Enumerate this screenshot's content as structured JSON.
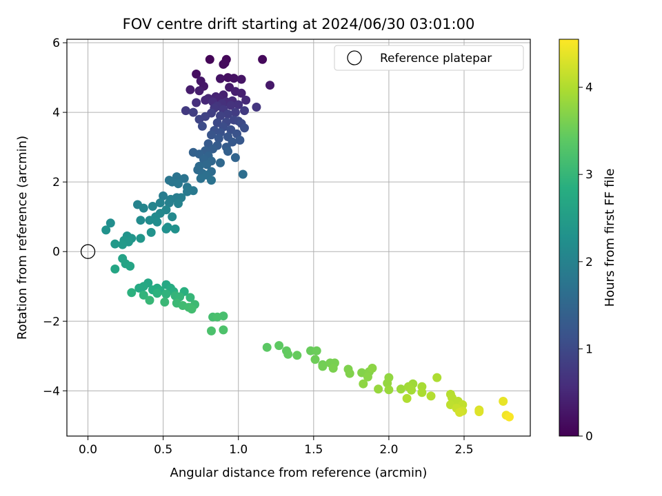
{
  "chart_data": {
    "type": "scatter",
    "title": "FOV centre drift starting at 2024/06/30 03:01:00",
    "xlabel": "Angular distance from reference (arcmin)",
    "ylabel": "Rotation from reference (arcmin)",
    "xlim": [
      -0.14,
      2.94
    ],
    "ylim": [
      -5.3,
      6.1
    ],
    "xticks": [
      0.0,
      0.5,
      1.0,
      1.5,
      2.0,
      2.5
    ],
    "xtick_labels": [
      "0.0",
      "0.5",
      "1.0",
      "1.5",
      "2.0",
      "2.5"
    ],
    "yticks": [
      -4,
      -2,
      0,
      2,
      4,
      6
    ],
    "ytick_labels": [
      "−4",
      "−2",
      "0",
      "2",
      "4",
      "6"
    ],
    "grid": true,
    "legend": {
      "label": "Reference platepar",
      "placement": "top-right"
    },
    "colorbar": {
      "label": "Hours from first FF file",
      "range": [
        0,
        4.55
      ],
      "ticks": [
        0,
        1,
        2,
        3,
        4
      ],
      "tick_labels": [
        "0",
        "1",
        "2",
        "3",
        "4"
      ],
      "colormap": "viridis"
    },
    "reference_point": {
      "x": 0.0,
      "y": 0.0
    },
    "series": [
      {
        "points": [
          [
            0.81,
            5.52,
            0.05
          ],
          [
            0.92,
            5.52,
            0.08
          ],
          [
            1.16,
            5.52,
            0.1
          ],
          [
            0.91,
            5.42,
            0.12
          ],
          [
            0.9,
            5.38,
            0.14
          ],
          [
            0.72,
            5.1,
            0.16
          ],
          [
            0.93,
            5.0,
            0.2
          ],
          [
            0.97,
            4.98,
            0.22
          ],
          [
            0.88,
            4.97,
            0.24
          ],
          [
            1.02,
            4.95,
            0.26
          ],
          [
            0.75,
            4.9,
            0.28
          ],
          [
            0.77,
            4.75,
            0.3
          ],
          [
            1.21,
            4.78,
            0.32
          ],
          [
            0.94,
            4.72,
            0.34
          ],
          [
            0.68,
            4.65,
            0.36
          ],
          [
            0.74,
            4.62,
            0.38
          ],
          [
            0.98,
            4.6,
            0.4
          ],
          [
            1.02,
            4.55,
            0.42
          ],
          [
            0.9,
            4.5,
            0.44
          ],
          [
            0.85,
            4.45,
            0.46
          ],
          [
            0.87,
            4.4,
            0.48
          ],
          [
            0.8,
            4.4,
            0.5
          ],
          [
            0.78,
            4.35,
            0.52
          ],
          [
            1.05,
            4.35,
            0.54
          ],
          [
            0.96,
            4.33,
            0.56
          ],
          [
            0.92,
            4.3,
            0.58
          ],
          [
            0.83,
            4.3,
            0.6
          ],
          [
            0.72,
            4.28,
            0.62
          ],
          [
            0.89,
            4.25,
            0.64
          ],
          [
            1.0,
            4.22,
            0.66
          ],
          [
            0.95,
            4.2,
            0.68
          ],
          [
            0.86,
            4.18,
            0.7
          ],
          [
            1.12,
            4.15,
            0.72
          ],
          [
            0.84,
            4.12,
            0.74
          ],
          [
            0.9,
            4.08,
            0.76
          ],
          [
            0.65,
            4.05,
            0.78
          ],
          [
            1.04,
            4.05,
            0.8
          ],
          [
            0.98,
            4.0,
            0.82
          ],
          [
            0.7,
            4.0,
            0.84
          ],
          [
            0.82,
            3.98,
            0.86
          ],
          [
            0.93,
            3.95,
            0.88
          ],
          [
            0.88,
            3.9,
            0.9
          ],
          [
            0.78,
            3.88,
            0.92
          ],
          [
            0.74,
            3.8,
            0.94
          ],
          [
            0.97,
            3.78,
            0.96
          ],
          [
            1.0,
            3.75,
            0.98
          ],
          [
            0.92,
            3.72,
            1.0
          ],
          [
            0.86,
            3.7,
            1.02
          ],
          [
            1.02,
            3.68,
            1.04
          ],
          [
            0.76,
            3.6,
            1.06
          ],
          [
            0.9,
            3.58,
            1.08
          ],
          [
            1.04,
            3.55,
            1.1
          ],
          [
            0.95,
            3.5,
            1.12
          ],
          [
            0.84,
            3.48,
            1.14
          ],
          [
            0.88,
            3.42,
            1.16
          ],
          [
            0.99,
            3.38,
            1.18
          ],
          [
            0.82,
            3.35,
            1.2
          ],
          [
            0.93,
            3.3,
            1.22
          ],
          [
            0.87,
            3.25,
            1.24
          ],
          [
            1.01,
            3.2,
            1.26
          ],
          [
            0.96,
            3.15,
            1.28
          ],
          [
            0.8,
            3.1,
            1.3
          ],
          [
            0.86,
            3.05,
            1.32
          ],
          [
            0.92,
            3.0,
            1.34
          ],
          [
            0.83,
            2.95,
            1.36
          ],
          [
            0.78,
            2.9,
            1.38
          ],
          [
            0.93,
            2.88,
            1.4
          ],
          [
            0.7,
            2.85,
            1.42
          ],
          [
            0.74,
            2.8,
            1.44
          ],
          [
            0.8,
            2.75,
            1.46
          ],
          [
            0.98,
            2.7,
            1.48
          ],
          [
            0.77,
            2.65,
            1.5
          ],
          [
            0.82,
            2.6,
            1.52
          ],
          [
            0.88,
            2.55,
            1.54
          ],
          [
            0.79,
            2.5,
            1.56
          ],
          [
            0.74,
            2.45,
            1.58
          ],
          [
            0.73,
            2.35,
            1.6
          ],
          [
            0.82,
            2.3,
            1.62
          ],
          [
            0.76,
            2.25,
            1.64
          ],
          [
            1.03,
            2.22,
            1.66
          ],
          [
            0.79,
            2.2,
            1.68
          ],
          [
            0.75,
            2.1,
            1.7
          ],
          [
            0.82,
            2.05,
            1.72
          ],
          [
            0.59,
            2.15,
            1.74
          ],
          [
            0.64,
            2.1,
            1.76
          ],
          [
            0.54,
            2.05,
            1.78
          ],
          [
            0.56,
            2.0,
            1.8
          ],
          [
            0.6,
            1.95,
            1.82
          ],
          [
            0.66,
            1.85,
            1.84
          ],
          [
            0.7,
            1.75,
            1.86
          ],
          [
            0.66,
            1.72,
            1.88
          ],
          [
            0.5,
            1.6,
            1.9
          ],
          [
            0.59,
            1.55,
            1.92
          ],
          [
            0.62,
            1.55,
            1.94
          ],
          [
            0.55,
            1.5,
            1.96
          ],
          [
            0.54,
            1.4,
            1.98
          ],
          [
            0.48,
            1.4,
            2.0
          ],
          [
            0.6,
            1.38,
            2.02
          ],
          [
            0.33,
            1.35,
            2.04
          ],
          [
            0.43,
            1.3,
            2.06
          ],
          [
            0.37,
            1.25,
            2.08
          ],
          [
            0.52,
            1.2,
            2.1
          ],
          [
            0.48,
            1.1,
            2.12
          ],
          [
            0.56,
            1.0,
            2.14
          ],
          [
            0.45,
            1.0,
            2.16
          ],
          [
            0.35,
            0.9,
            2.18
          ],
          [
            0.41,
            0.9,
            2.2
          ],
          [
            0.46,
            0.85,
            2.22
          ],
          [
            0.15,
            0.82,
            2.24
          ],
          [
            0.53,
            0.7,
            2.26
          ],
          [
            0.52,
            0.65,
            2.28
          ],
          [
            0.58,
            0.65,
            2.3
          ],
          [
            0.12,
            0.62,
            2.32
          ],
          [
            0.42,
            0.55,
            2.34
          ],
          [
            0.26,
            0.45,
            2.36
          ],
          [
            0.29,
            0.38,
            2.38
          ],
          [
            0.35,
            0.38,
            2.4
          ],
          [
            0.24,
            0.32,
            2.42
          ],
          [
            0.27,
            0.28,
            2.44
          ],
          [
            0.18,
            0.22,
            2.46
          ],
          [
            0.23,
            0.2,
            2.48
          ],
          [
            0.23,
            -0.2,
            2.62
          ],
          [
            0.25,
            -0.35,
            2.64
          ],
          [
            0.28,
            -0.42,
            2.66
          ],
          [
            0.18,
            -0.5,
            2.68
          ],
          [
            0.4,
            -0.9,
            2.7
          ],
          [
            0.52,
            -0.95,
            2.72
          ],
          [
            0.37,
            -1.0,
            2.74
          ],
          [
            0.34,
            -1.05,
            2.76
          ],
          [
            0.46,
            -1.05,
            2.78
          ],
          [
            0.55,
            -1.05,
            2.8
          ],
          [
            0.43,
            -1.1,
            2.82
          ],
          [
            0.48,
            -1.12,
            2.84
          ],
          [
            0.57,
            -1.15,
            2.86
          ],
          [
            0.64,
            -1.15,
            2.88
          ],
          [
            0.29,
            -1.18,
            2.9
          ],
          [
            0.46,
            -1.2,
            2.92
          ],
          [
            0.52,
            -1.22,
            2.94
          ],
          [
            0.37,
            -1.25,
            2.96
          ],
          [
            0.58,
            -1.27,
            2.98
          ],
          [
            0.61,
            -1.3,
            3.0
          ],
          [
            0.68,
            -1.32,
            3.02
          ],
          [
            0.41,
            -1.4,
            3.04
          ],
          [
            0.51,
            -1.45,
            3.06
          ],
          [
            0.59,
            -1.48,
            3.08
          ],
          [
            0.71,
            -1.52,
            3.1
          ],
          [
            0.63,
            -1.55,
            3.12
          ],
          [
            0.67,
            -1.6,
            3.14
          ],
          [
            0.69,
            -1.65,
            3.16
          ],
          [
            0.83,
            -1.88,
            3.18
          ],
          [
            0.9,
            -1.85,
            3.2
          ],
          [
            0.86,
            -1.88,
            3.22
          ],
          [
            0.82,
            -2.28,
            3.24
          ],
          [
            0.9,
            -2.25,
            3.26
          ],
          [
            1.19,
            -2.75,
            3.4
          ],
          [
            1.27,
            -2.7,
            3.42
          ],
          [
            1.32,
            -2.85,
            3.44
          ],
          [
            1.33,
            -2.95,
            3.46
          ],
          [
            1.39,
            -2.98,
            3.48
          ],
          [
            1.48,
            -2.85,
            3.5
          ],
          [
            1.52,
            -2.85,
            3.52
          ],
          [
            1.51,
            -3.1,
            3.54
          ],
          [
            1.56,
            -3.25,
            3.56
          ],
          [
            1.56,
            -3.3,
            3.58
          ],
          [
            1.61,
            -3.2,
            3.6
          ],
          [
            1.64,
            -3.2,
            3.62
          ],
          [
            1.63,
            -3.35,
            3.64
          ],
          [
            1.73,
            -3.38,
            3.66
          ],
          [
            1.74,
            -3.5,
            3.68
          ],
          [
            1.82,
            -3.48,
            3.7
          ],
          [
            1.87,
            -3.45,
            3.72
          ],
          [
            1.86,
            -3.6,
            3.74
          ],
          [
            1.89,
            -3.35,
            3.76
          ],
          [
            1.83,
            -3.8,
            3.78
          ],
          [
            2.0,
            -3.62,
            3.8
          ],
          [
            1.99,
            -3.78,
            3.82
          ],
          [
            1.93,
            -3.95,
            3.84
          ],
          [
            2.0,
            -3.97,
            3.86
          ],
          [
            2.08,
            -3.95,
            3.88
          ],
          [
            2.16,
            -3.8,
            3.9
          ],
          [
            2.13,
            -3.88,
            3.92
          ],
          [
            2.15,
            -3.98,
            3.94
          ],
          [
            2.22,
            -3.88,
            3.96
          ],
          [
            2.22,
            -4.05,
            3.98
          ],
          [
            2.32,
            -3.62,
            4.0
          ],
          [
            2.12,
            -4.22,
            4.02
          ],
          [
            2.28,
            -4.15,
            4.04
          ],
          [
            2.41,
            -4.1,
            4.06
          ],
          [
            2.42,
            -4.2,
            4.08
          ],
          [
            2.46,
            -4.3,
            4.1
          ],
          [
            2.41,
            -4.4,
            4.12
          ],
          [
            2.49,
            -4.4,
            4.14
          ],
          [
            2.45,
            -4.5,
            4.18
          ],
          [
            2.49,
            -4.58,
            4.22
          ],
          [
            2.47,
            -4.62,
            4.26
          ],
          [
            2.6,
            -4.55,
            4.3
          ],
          [
            2.6,
            -4.6,
            4.34
          ],
          [
            2.76,
            -4.3,
            4.4
          ],
          [
            2.78,
            -4.7,
            4.46
          ],
          [
            2.8,
            -4.75,
            4.52
          ]
        ]
      }
    ]
  }
}
